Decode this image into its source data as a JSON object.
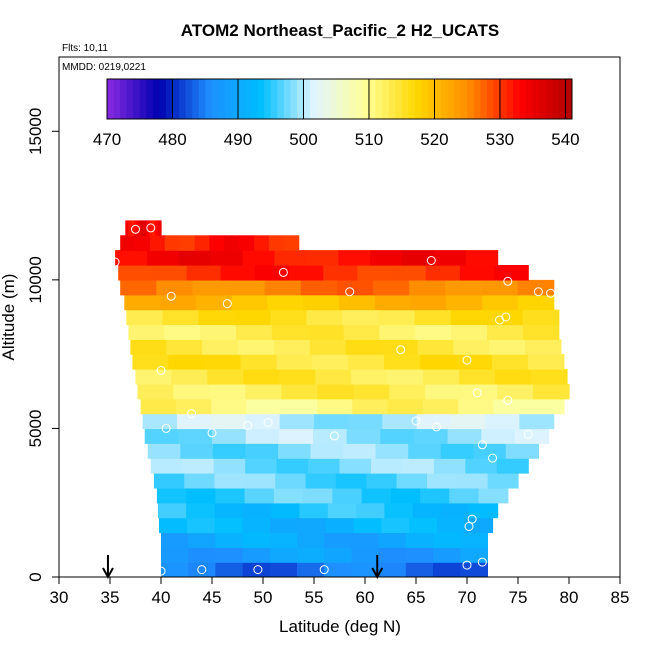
{
  "chart_data": {
    "type": "heatmap",
    "title": "ATOM2 Northeast_Pacific_2 H2_UCATS",
    "flights_note": "Flts: 10,11",
    "dates_note": "MMDD: 0219,0221",
    "xlabel": "Latitude (deg N)",
    "ylabel": "Altitude (m)",
    "xlim": [
      30,
      85
    ],
    "ylim": [
      0,
      17500
    ],
    "x_ticks": [
      "30",
      "35",
      "40",
      "45",
      "50",
      "55",
      "60",
      "65",
      "70",
      "75",
      "80",
      "85"
    ],
    "y_ticks": [
      "0",
      "5000",
      "10000",
      "15000"
    ],
    "colorbar": {
      "min": 470,
      "max": 541,
      "ticks": [
        "470",
        "480",
        "490",
        "500",
        "510",
        "520",
        "530",
        "540"
      ],
      "tick_values": [
        470,
        480,
        490,
        500,
        510,
        520,
        530,
        540
      ]
    },
    "curtain_profile": [
      {
        "alt": 0,
        "lat_min": 40.0,
        "lat_max": 72.0,
        "value": 484
      },
      {
        "alt": 500,
        "lat_min": 40.0,
        "lat_max": 72.0,
        "value": 488
      },
      {
        "alt": 1000,
        "lat_min": 40.0,
        "lat_max": 72.0,
        "value": 490
      },
      {
        "alt": 1500,
        "lat_min": 39.8,
        "lat_max": 72.5,
        "value": 492
      },
      {
        "alt": 2000,
        "lat_min": 39.7,
        "lat_max": 73.0,
        "value": 494
      },
      {
        "alt": 2500,
        "lat_min": 39.6,
        "lat_max": 74.0,
        "value": 496
      },
      {
        "alt": 3000,
        "lat_min": 39.3,
        "lat_max": 75.0,
        "value": 497
      },
      {
        "alt": 3500,
        "lat_min": 39.0,
        "lat_max": 76.0,
        "value": 498
      },
      {
        "alt": 4000,
        "lat_min": 38.7,
        "lat_max": 77.0,
        "value": 498
      },
      {
        "alt": 4500,
        "lat_min": 38.4,
        "lat_max": 78.0,
        "value": 499
      },
      {
        "alt": 5000,
        "lat_min": 38.2,
        "lat_max": 78.5,
        "value": 500
      },
      {
        "alt": 5500,
        "lat_min": 38.0,
        "lat_max": 79.5,
        "value": 511
      },
      {
        "alt": 6000,
        "lat_min": 37.7,
        "lat_max": 80.0,
        "value": 513
      },
      {
        "alt": 6500,
        "lat_min": 37.5,
        "lat_max": 79.8,
        "value": 514
      },
      {
        "alt": 7000,
        "lat_min": 37.2,
        "lat_max": 79.5,
        "value": 515
      },
      {
        "alt": 7500,
        "lat_min": 37.0,
        "lat_max": 79.2,
        "value": 514
      },
      {
        "alt": 8000,
        "lat_min": 36.8,
        "lat_max": 79.0,
        "value": 513
      },
      {
        "alt": 8500,
        "lat_min": 36.6,
        "lat_max": 79.0,
        "value": 515
      },
      {
        "alt": 9000,
        "lat_min": 36.4,
        "lat_max": 78.5,
        "value": 520
      },
      {
        "alt": 9500,
        "lat_min": 36.0,
        "lat_max": 78.5,
        "value": 526
      },
      {
        "alt": 10000,
        "lat_min": 35.8,
        "lat_max": 76.0,
        "value": 531
      },
      {
        "alt": 10500,
        "lat_min": 35.5,
        "lat_max": 73.0,
        "value": 533
      },
      {
        "alt": 11000,
        "lat_min": 36.0,
        "lat_max": 53.5,
        "value": 532
      },
      {
        "alt": 11500,
        "lat_min": 36.5,
        "lat_max": 40.0,
        "value": 534
      }
    ],
    "sample_points": [
      {
        "lat": 37.5,
        "alt": 11700
      },
      {
        "lat": 39.0,
        "alt": 11750
      },
      {
        "lat": 35.5,
        "alt": 10600
      },
      {
        "lat": 52.0,
        "alt": 10250
      },
      {
        "lat": 66.5,
        "alt": 10650
      },
      {
        "lat": 74.0,
        "alt": 9950
      },
      {
        "lat": 41.0,
        "alt": 9450
      },
      {
        "lat": 58.5,
        "alt": 9600
      },
      {
        "lat": 77.0,
        "alt": 9600
      },
      {
        "lat": 78.2,
        "alt": 9550
      },
      {
        "lat": 46.5,
        "alt": 9200
      },
      {
        "lat": 73.2,
        "alt": 8650
      },
      {
        "lat": 73.8,
        "alt": 8750
      },
      {
        "lat": 63.5,
        "alt": 7650
      },
      {
        "lat": 70.0,
        "alt": 7300
      },
      {
        "lat": 40.0,
        "alt": 6950
      },
      {
        "lat": 71.0,
        "alt": 6200
      },
      {
        "lat": 74.0,
        "alt": 5950
      },
      {
        "lat": 43.0,
        "alt": 5500
      },
      {
        "lat": 65.0,
        "alt": 5250
      },
      {
        "lat": 67.0,
        "alt": 5050
      },
      {
        "lat": 50.5,
        "alt": 5200
      },
      {
        "lat": 48.5,
        "alt": 5100
      },
      {
        "lat": 40.5,
        "alt": 5000
      },
      {
        "lat": 45.0,
        "alt": 4850
      },
      {
        "lat": 57.0,
        "alt": 4750
      },
      {
        "lat": 76.0,
        "alt": 4800
      },
      {
        "lat": 71.5,
        "alt": 4450
      },
      {
        "lat": 72.5,
        "alt": 4000
      },
      {
        "lat": 70.5,
        "alt": 1950
      },
      {
        "lat": 70.2,
        "alt": 1700
      },
      {
        "lat": 71.5,
        "alt": 500
      },
      {
        "lat": 70.0,
        "alt": 400
      },
      {
        "lat": 44.0,
        "alt": 250
      },
      {
        "lat": 49.5,
        "alt": 250
      },
      {
        "lat": 56.0,
        "alt": 250
      },
      {
        "lat": 40.0,
        "alt": 200
      }
    ],
    "arrows_lat": [
      34.8,
      61.2
    ]
  },
  "colors": {
    "colorbar_stops": [
      "#8a2be2",
      "#0000b0",
      "#1e90ff",
      "#00bfff",
      "#e0f4ff",
      "#ffff99",
      "#ffd700",
      "#ff8c00",
      "#ff0000",
      "#b00000"
    ]
  }
}
